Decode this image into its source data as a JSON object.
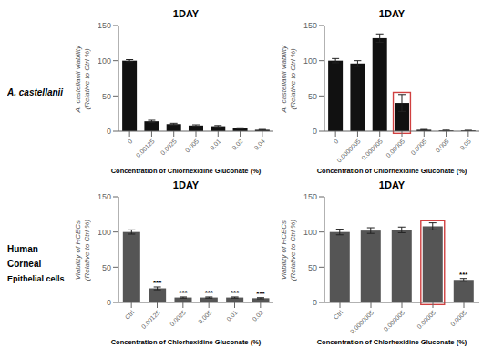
{
  "chart_data": [
    {
      "type": "bar",
      "title": "1DAY",
      "categories": [
        "0",
        "0.00125",
        "0.0025",
        "0.005",
        "0.01",
        "0.02",
        "0.04"
      ],
      "values": [
        100,
        14,
        10,
        8,
        7,
        4,
        2
      ],
      "errors": [
        1.5,
        1.5,
        1.2,
        1.0,
        1.0,
        0.8,
        0.5
      ],
      "ylabel": "A. castellanii viability\n(Relative to Ctrl %)",
      "xlabel": "Concentration of Chlorhexidine Gluconate (%)",
      "ylim": [
        0,
        150
      ],
      "yticks": [
        0,
        50,
        100,
        150
      ],
      "color": "#111111",
      "annotations": [
        "A. castellanii"
      ]
    },
    {
      "type": "bar",
      "title": "1DAY",
      "categories": [
        "0",
        "0.0000005",
        "0.000005",
        "0.00005",
        "0.0005",
        "0.005",
        "0.05"
      ],
      "values": [
        100,
        96,
        132,
        40,
        2,
        1,
        1
      ],
      "errors": [
        3,
        4,
        6,
        12,
        0.5,
        0.5,
        0.3
      ],
      "ylabel": "A. castellanii viability\n(Relative to Ctrl %)",
      "xlabel": "Concentration of Chlorhexidine Gluconate (%)",
      "ylim": [
        0,
        150
      ],
      "yticks": [
        0,
        50,
        100,
        150
      ],
      "color": "#111111",
      "highlight": "0.00005",
      "highlight_color": "#d04040"
    },
    {
      "type": "bar",
      "title": "1DAY",
      "categories": [
        "Ctrl",
        "0.00125",
        "0.0025",
        "0.005",
        "0.01",
        "0.02"
      ],
      "values": [
        100,
        20,
        7,
        7,
        7,
        6
      ],
      "errors": [
        3,
        2,
        0.8,
        0.8,
        0.8,
        0.8
      ],
      "stars": [
        null,
        "***",
        "***",
        "***",
        "***",
        "***"
      ],
      "ylabel": "Viability of HCECs\n(Relative to Ctrl %)",
      "xlabel": "Concentration of Chlorhexidine Gluconate (%)",
      "ylim": [
        0,
        150
      ],
      "yticks": [
        0,
        50,
        100,
        150
      ],
      "color": "#555555",
      "annotations": [
        "Human",
        "Corneal",
        "Epithelial cells"
      ]
    },
    {
      "type": "bar",
      "title": "1DAY",
      "categories": [
        "Ctrl",
        "0.0000005",
        "0.000005",
        "0.00005",
        "0.0005"
      ],
      "values": [
        100,
        102,
        103,
        108,
        32
      ],
      "errors": [
        4,
        4,
        4,
        5,
        2
      ],
      "stars": [
        null,
        null,
        null,
        null,
        "***"
      ],
      "ylabel": "Viability of HCECs\n(Relative to Ctrl %)",
      "xlabel": "Concentration of Chlorhexidine Gluconate (%)",
      "ylim": [
        0,
        150
      ],
      "yticks": [
        0,
        50,
        100,
        150
      ],
      "color": "#555555",
      "highlight": "0.00005",
      "highlight_color": "#d04040"
    }
  ]
}
